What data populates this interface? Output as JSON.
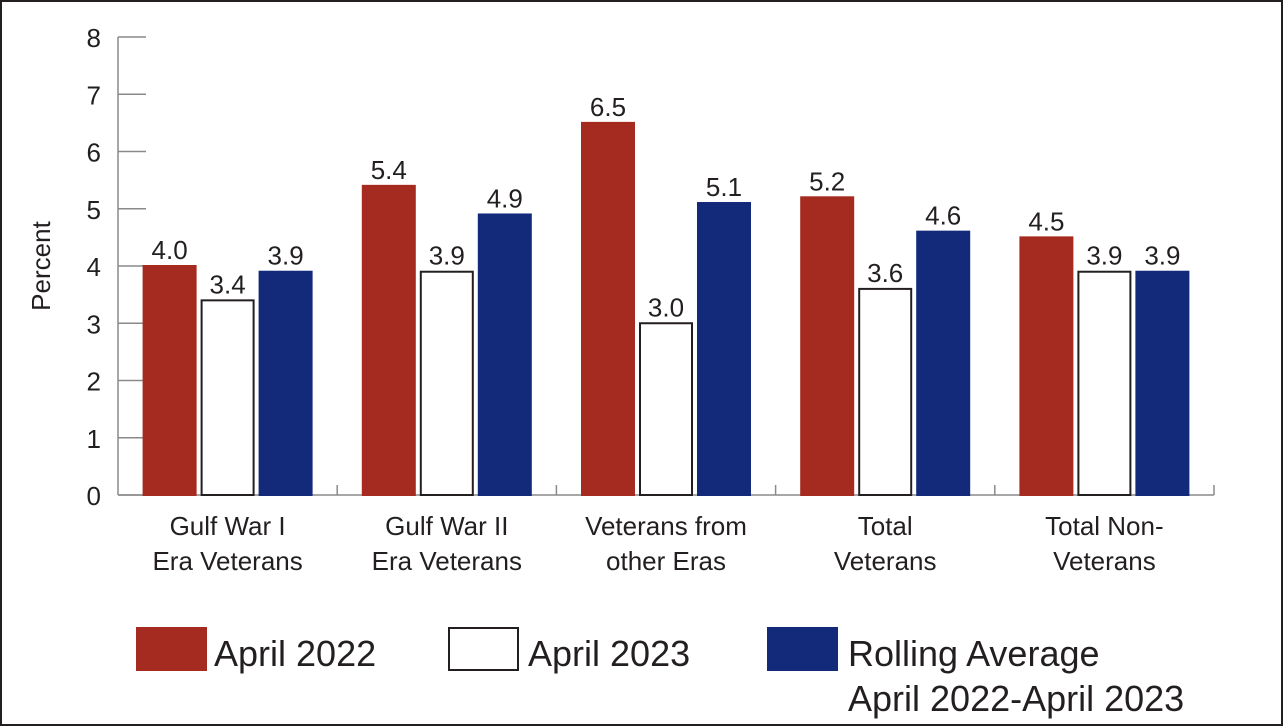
{
  "chart_data": {
    "type": "bar",
    "title": "",
    "xlabel": "",
    "ylabel": "Percent",
    "ylim": [
      0,
      8
    ],
    "yticks": [
      "0",
      "1",
      "2",
      "3",
      "4",
      "5",
      "6",
      "7",
      "8"
    ],
    "grid": false,
    "legend_position": "bottom",
    "categories": [
      [
        "Gulf War I",
        "Era Veterans"
      ],
      [
        "Gulf War II",
        "Era Veterans"
      ],
      [
        "Veterans from",
        "other Eras"
      ],
      [
        "Total",
        "Veterans"
      ],
      [
        "Total Non-",
        "Veterans"
      ]
    ],
    "series": [
      {
        "name": "April 2022",
        "color": "#a52a1f",
        "stroke": "#a52a1f",
        "values": [
          4.0,
          5.4,
          6.5,
          5.2,
          4.5
        ],
        "labels": [
          "4.0",
          "5.4",
          "6.5",
          "5.2",
          "4.5"
        ]
      },
      {
        "name": "April 2023",
        "color": "#ffffff",
        "stroke": "#231f20",
        "values": [
          3.4,
          3.9,
          3.0,
          3.6,
          3.9
        ],
        "labels": [
          "3.4",
          "3.9",
          "3.0",
          "3.6",
          "3.9"
        ]
      },
      {
        "name": "Rolling Average\nApril 2022-April 2023",
        "legend_lines": [
          "Rolling Average",
          "April 2022-April 2023"
        ],
        "color": "#13297a",
        "stroke": "#13297a",
        "values": [
          3.9,
          4.9,
          5.1,
          4.6,
          3.9
        ],
        "labels": [
          "3.9",
          "4.9",
          "5.1",
          "4.6",
          "3.9"
        ]
      }
    ]
  }
}
